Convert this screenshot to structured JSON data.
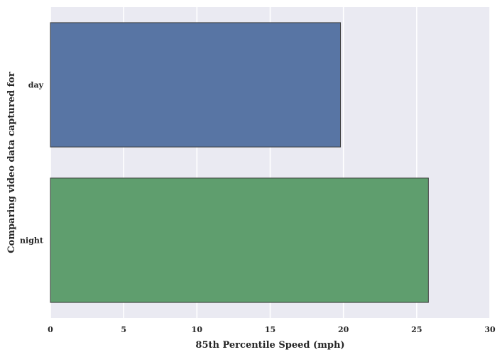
{
  "chart_data": {
    "type": "bar",
    "orientation": "horizontal",
    "title": "",
    "xlabel": "85th Percentile Speed (mph)",
    "ylabel": "Comparing video data captured for",
    "categories": [
      "day",
      "night"
    ],
    "values": [
      19.8,
      25.8
    ],
    "xlim": [
      0,
      30
    ],
    "xticks": [
      "0",
      "5",
      "10",
      "15",
      "20",
      "25",
      "30"
    ],
    "grid": true,
    "legend": "none",
    "colors": {
      "background": "#eaeaf2",
      "grid": "#ffffff",
      "bars": [
        "#5875a4",
        "#5f9e6e"
      ],
      "bar_edge": "#3d3d3d"
    }
  }
}
